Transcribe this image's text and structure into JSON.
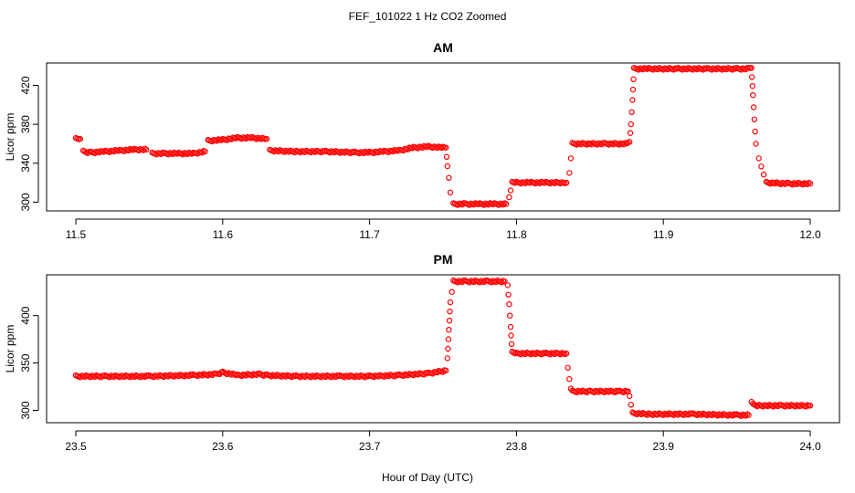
{
  "figure": {
    "suptitle": "FEF_101022  1 Hz CO2 Zoomed",
    "xlabel": "Hour of Day (UTC)"
  },
  "colors": {
    "points": "#ff0000",
    "axes": "#000000",
    "background": "#ffffff"
  },
  "chart_data": [
    {
      "type": "scatter",
      "title": "AM",
      "xlabel": "Hour of Day (UTC)",
      "ylabel": "Licor ppm",
      "xlim": [
        11.5,
        12.0
      ],
      "ylim": [
        291,
        443
      ],
      "xticks": [
        11.5,
        11.6,
        11.7,
        11.8,
        11.9,
        12.0
      ],
      "xtick_labels": [
        "11.5",
        "11.6",
        "11.7",
        "11.8",
        "11.9",
        "12.0"
      ],
      "yticks": [
        300,
        340,
        380,
        420
      ],
      "ytick_labels": [
        "300",
        "340",
        "380",
        "420"
      ],
      "grid": false,
      "marker": "open-circle",
      "series": [
        {
          "x": [
            11.5,
            11.503,
            11.505,
            11.51,
            11.52,
            11.53,
            11.54,
            11.548,
            11.552,
            11.56,
            11.57,
            11.58,
            11.588,
            11.59,
            11.6,
            11.61,
            11.62,
            11.63,
            11.632,
            11.65,
            11.67,
            11.69,
            11.7,
            11.71,
            11.72,
            11.73,
            11.74,
            11.75,
            11.752,
            11.753,
            11.754,
            11.755,
            11.757,
            11.765,
            11.775,
            11.785,
            11.793,
            11.795,
            11.796,
            11.797,
            11.8,
            11.81,
            11.82,
            11.834,
            11.836,
            11.837,
            11.838,
            11.845,
            11.86,
            11.876,
            11.877,
            11.878,
            11.879,
            11.88,
            11.89,
            11.91,
            11.93,
            11.95,
            11.958,
            11.96,
            11.961,
            11.962,
            11.963,
            11.965,
            11.97,
            11.985,
            12.0
          ],
          "y": [
            365,
            365,
            352,
            351,
            352,
            353,
            354,
            354,
            350,
            350,
            350,
            350,
            352,
            363,
            364,
            366,
            366,
            365,
            353,
            352,
            352,
            351,
            351,
            352,
            353,
            356,
            357,
            356,
            356,
            337,
            325,
            310,
            298,
            298,
            298,
            298,
            298,
            305,
            312,
            320,
            320,
            320,
            320,
            320,
            330,
            345,
            360,
            360,
            360,
            360,
            362,
            380,
            405,
            437,
            437,
            437,
            437,
            437,
            437,
            438,
            410,
            385,
            360,
            345,
            320,
            319,
            319
          ]
        }
      ]
    },
    {
      "type": "scatter",
      "title": "PM",
      "xlabel": "Hour of Day (UTC)",
      "ylabel": "Licor ppm",
      "xlim": [
        23.5,
        24.0
      ],
      "ylim": [
        287,
        443
      ],
      "xticks": [
        23.5,
        23.6,
        23.7,
        23.8,
        23.9,
        24.0
      ],
      "xtick_labels": [
        "23.5",
        "23.6",
        "23.7",
        "23.8",
        "23.9",
        "24.0"
      ],
      "yticks": [
        300,
        350,
        400
      ],
      "ytick_labels": [
        "300",
        "350",
        "400"
      ],
      "grid": false,
      "marker": "open-circle",
      "series": [
        {
          "x": [
            23.5,
            23.52,
            23.55,
            23.58,
            23.595,
            23.6,
            23.61,
            23.625,
            23.63,
            23.65,
            23.68,
            23.7,
            23.72,
            23.74,
            23.752,
            23.753,
            23.754,
            23.755,
            23.757,
            23.765,
            23.78,
            23.792,
            23.794,
            23.795,
            23.796,
            23.797,
            23.8,
            23.82,
            23.834,
            23.835,
            23.836,
            23.837,
            23.838,
            23.85,
            23.87,
            23.876,
            23.877,
            23.878,
            23.879,
            23.89,
            23.92,
            23.95,
            23.958,
            23.96,
            23.961,
            23.965,
            23.98,
            24.0
          ],
          "y": [
            336,
            336,
            336,
            337,
            338,
            340,
            337,
            338,
            337,
            336,
            336,
            336,
            337,
            339,
            342,
            355,
            385,
            414,
            436,
            436,
            436,
            436,
            432,
            412,
            388,
            361,
            360,
            360,
            360,
            345,
            333,
            322,
            320,
            320,
            320,
            320,
            315,
            306,
            297,
            296,
            296,
            295,
            295,
            308,
            306,
            305,
            305,
            305
          ]
        }
      ]
    }
  ]
}
